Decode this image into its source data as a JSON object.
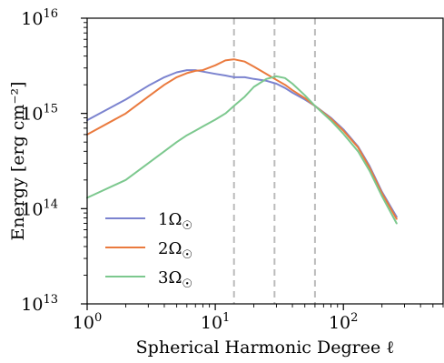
{
  "chart_data": {
    "type": "line",
    "title": "",
    "xlabel": "Spherical Harmonic Degree ℓ",
    "ylabel": "Energy [erg cm⁻²]",
    "xscale": "log",
    "yscale": "log",
    "xlim": [
      1,
      600
    ],
    "ylim": [
      10000000000000.0,
      1e+16
    ],
    "grid": false,
    "legend_position": "lower-left",
    "x_tick_labels": [
      {
        "value": 1,
        "base": "10",
        "exp": "0"
      },
      {
        "value": 10,
        "base": "10",
        "exp": "1"
      },
      {
        "value": 100,
        "base": "10",
        "exp": "2"
      }
    ],
    "y_tick_labels": [
      {
        "value": 10000000000000.0,
        "base": "10",
        "exp": "13"
      },
      {
        "value": 100000000000000.0,
        "base": "10",
        "exp": "14"
      },
      {
        "value": 1000000000000000.0,
        "base": "10",
        "exp": "15"
      },
      {
        "value": 1e+16,
        "base": "10",
        "exp": "16"
      }
    ],
    "vertical_lines": [
      14,
      29,
      60
    ],
    "vline_color": "#bbbbbb",
    "series": [
      {
        "name": "1Ω☉",
        "base": "1Ω",
        "sub": "☉",
        "color": "#7b83cf",
        "x": [
          1,
          2,
          3,
          4,
          5,
          6,
          7,
          8,
          10,
          12,
          14,
          17,
          20,
          25,
          30,
          35,
          40,
          50,
          60,
          80,
          100,
          130,
          160,
          200,
          260
        ],
        "y": [
          850000000000000.0,
          1400000000000000.0,
          1950000000000000.0,
          2400000000000000.0,
          2700000000000000.0,
          2850000000000000.0,
          2850000000000000.0,
          2750000000000000.0,
          2600000000000000.0,
          2500000000000000.0,
          2400000000000000.0,
          2400000000000000.0,
          2300000000000000.0,
          2200000000000000.0,
          2050000000000000.0,
          1850000000000000.0,
          1650000000000000.0,
          1400000000000000.0,
          1200000000000000.0,
          900000000000000.0,
          680000000000000.0,
          450000000000000.0,
          280000000000000.0,
          150000000000000.0,
          82000000000000.0
        ]
      },
      {
        "name": "2Ω☉",
        "base": "2Ω",
        "sub": "☉",
        "color": "#ea7a3e",
        "x": [
          1,
          2,
          3,
          4,
          5,
          6,
          7,
          8,
          10,
          12,
          14,
          17,
          20,
          25,
          30,
          35,
          40,
          50,
          60,
          80,
          100,
          130,
          160,
          200,
          260
        ],
        "y": [
          600000000000000.0,
          1000000000000000.0,
          1500000000000000.0,
          2000000000000000.0,
          2400000000000000.0,
          2650000000000000.0,
          2800000000000000.0,
          2850000000000000.0,
          3200000000000000.0,
          3600000000000000.0,
          3700000000000000.0,
          3500000000000000.0,
          3100000000000000.0,
          2600000000000000.0,
          2250000000000000.0,
          2000000000000000.0,
          1750000000000000.0,
          1450000000000000.0,
          1200000000000000.0,
          880000000000000.0,
          660000000000000.0,
          440000000000000.0,
          270000000000000.0,
          145000000000000.0,
          78000000000000.0
        ]
      },
      {
        "name": "3Ω☉",
        "base": "3Ω",
        "sub": "☉",
        "color": "#7cc88e",
        "x": [
          1,
          2,
          3,
          4,
          5,
          6,
          7,
          8,
          10,
          12,
          14,
          17,
          20,
          25,
          30,
          35,
          40,
          50,
          60,
          80,
          100,
          130,
          160,
          200,
          260
        ],
        "y": [
          130000000000000.0,
          200000000000000.0,
          300000000000000.0,
          400000000000000.0,
          500000000000000.0,
          590000000000000.0,
          660000000000000.0,
          730000000000000.0,
          860000000000000.0,
          1000000000000000.0,
          1200000000000000.0,
          1500000000000000.0,
          1900000000000000.0,
          2300000000000000.0,
          2450000000000000.0,
          2350000000000000.0,
          2050000000000000.0,
          1550000000000000.0,
          1200000000000000.0,
          840000000000000.0,
          610000000000000.0,
          400000000000000.0,
          250000000000000.0,
          135000000000000.0,
          70000000000000.0
        ]
      }
    ]
  }
}
